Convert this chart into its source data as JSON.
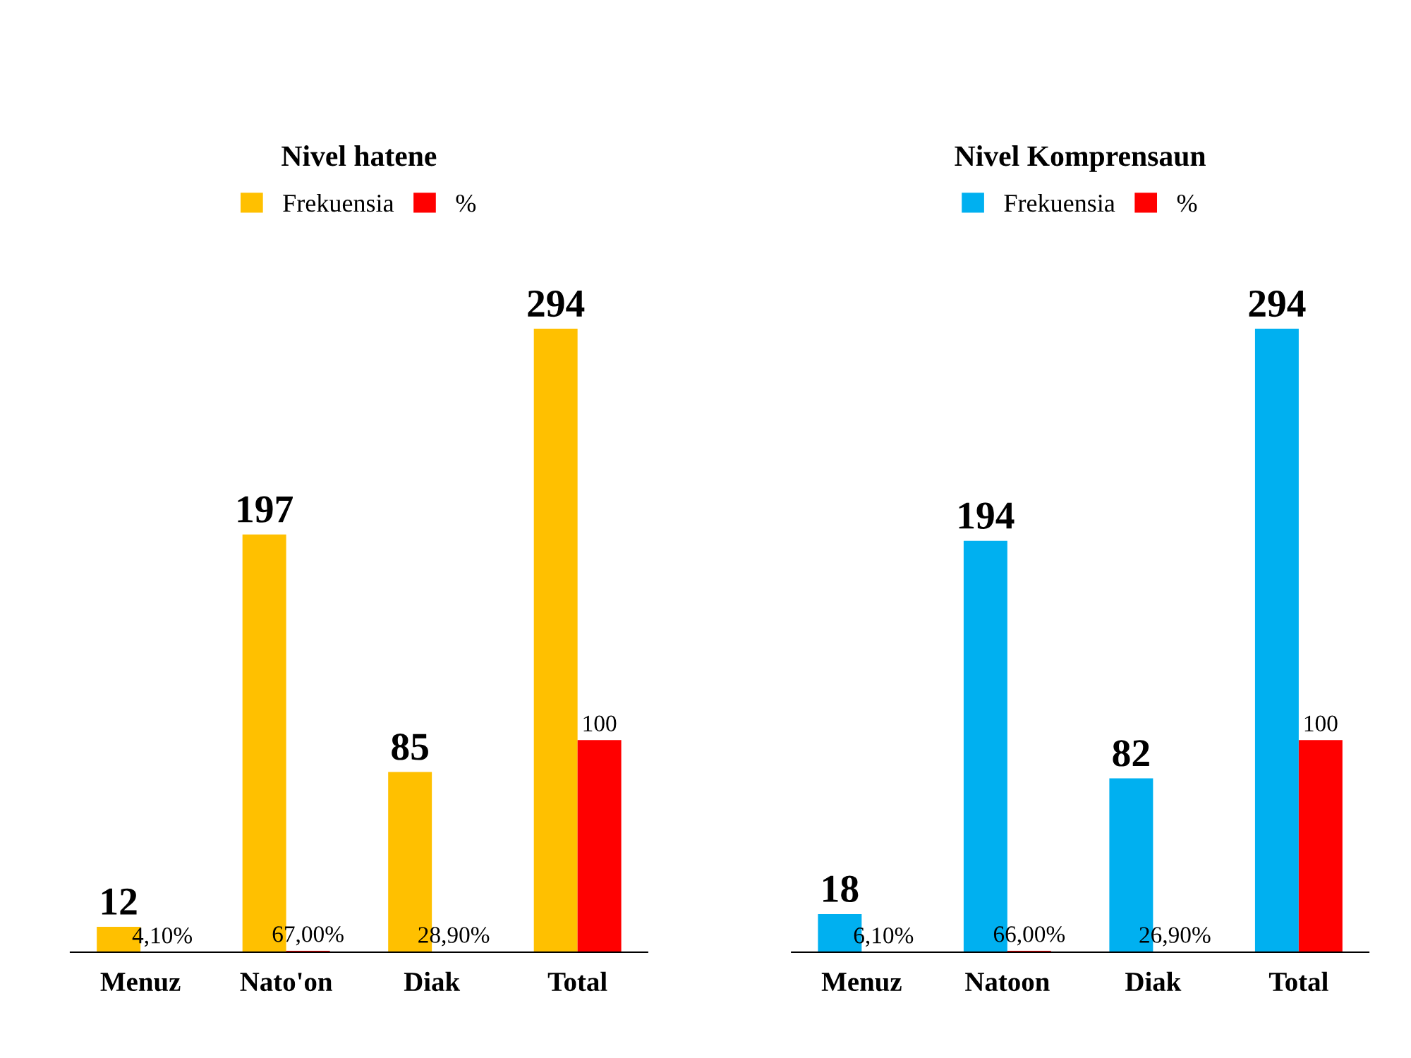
{
  "chart_data": [
    {
      "type": "bar",
      "title": "Nivel hatene",
      "categories": [
        "Menuz",
        "Nato'on",
        "Diak",
        "Total"
      ],
      "legend": "top",
      "series": [
        {
          "name": "Frekuensia",
          "color": "#ffc000",
          "values": [
            12,
            197,
            85,
            294
          ],
          "value_labels": [
            "12",
            "197",
            "85",
            "294"
          ]
        },
        {
          "name": "%",
          "color": "#ff0000",
          "values": [
            0.041,
            0.67,
            0.289,
            100
          ],
          "value_labels": [
            "4,10%",
            "67,00%",
            "28,90%",
            "100"
          ]
        }
      ]
    },
    {
      "type": "bar",
      "title": "Nivel Komprensaun",
      "categories": [
        "Menuz",
        "Natoon",
        "Diak",
        "Total"
      ],
      "legend": "top",
      "series": [
        {
          "name": "Frekuensia",
          "color": "#00b0f0",
          "values": [
            18,
            194,
            82,
            294
          ],
          "value_labels": [
            "18",
            "194",
            "82",
            "294"
          ]
        },
        {
          "name": "%",
          "color": "#ff0000",
          "values": [
            0.061,
            0.66,
            0.269,
            100
          ],
          "value_labels": [
            "6,10%",
            "66,00%",
            "26,90%",
            "100"
          ]
        }
      ]
    }
  ]
}
